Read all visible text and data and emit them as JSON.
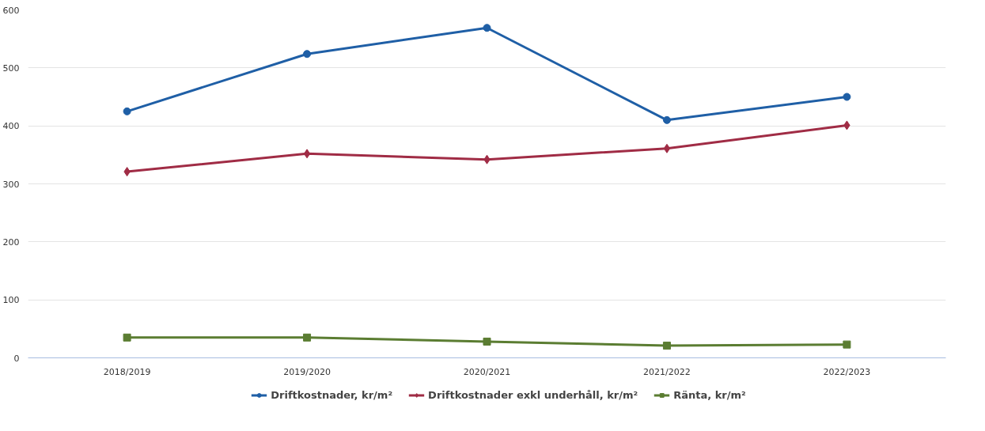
{
  "chart_data": {
    "type": "line",
    "categories": [
      "2018/2019",
      "2019/2020",
      "2020/2021",
      "2021/2022",
      "2022/2023"
    ],
    "series": [
      {
        "name": "Driftkostnader, kr/m²",
        "color": "#1f5fa6",
        "marker": "circle",
        "values": [
          425,
          524,
          569,
          410,
          450
        ]
      },
      {
        "name": "Driftkostnader exkl underhåll, kr/m²",
        "color": "#a02c45",
        "marker": "diamond",
        "values": [
          321,
          352,
          342,
          361,
          401
        ]
      },
      {
        "name": "Ränta, kr/m²",
        "color": "#5b7d32",
        "marker": "square",
        "values": [
          35,
          35,
          28,
          21,
          23
        ]
      }
    ],
    "ylim": [
      0,
      600
    ],
    "yticks": [
      0,
      100,
      200,
      300,
      400,
      500,
      600
    ],
    "grid": "y",
    "legend": "bottom"
  }
}
